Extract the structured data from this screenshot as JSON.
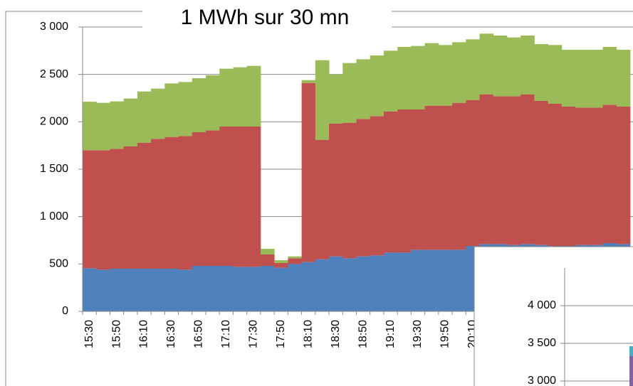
{
  "chart_data": [
    {
      "type": "stacked_bar",
      "title": "1 MWh sur 30 mn",
      "categories": [
        "15:30",
        null,
        "15:50",
        null,
        "16:10",
        null,
        "16:30",
        null,
        "16:50",
        null,
        "17:10",
        null,
        "17:30",
        null,
        "17:50",
        null,
        "18:10",
        null,
        "18:30",
        null,
        "18:50",
        null,
        "19:10",
        null,
        "19:30",
        null,
        "19:50",
        null,
        "20:10",
        null,
        null,
        null,
        null,
        null,
        null,
        null,
        null,
        null,
        null,
        null
      ],
      "series": [
        {
          "color": "#4f81bd",
          "values": [
            455,
            440,
            450,
            450,
            450,
            450,
            450,
            440,
            480,
            480,
            480,
            470,
            470,
            480,
            460,
            500,
            520,
            550,
            580,
            560,
            580,
            590,
            620,
            620,
            650,
            650,
            650,
            650,
            690,
            710,
            710,
            700,
            710,
            700,
            690,
            690,
            700,
            700,
            720,
            710
          ]
        },
        {
          "color": "#c0504d",
          "values": [
            1245,
            1260,
            1265,
            1290,
            1330,
            1370,
            1390,
            1410,
            1410,
            1430,
            1470,
            1480,
            1480,
            120,
            50,
            60,
            1890,
            1260,
            1400,
            1430,
            1450,
            1470,
            1490,
            1510,
            1480,
            1520,
            1520,
            1550,
            1540,
            1580,
            1560,
            1570,
            1580,
            1520,
            1500,
            1470,
            1450,
            1450,
            1460,
            1450
          ]
        },
        {
          "color": "#9bbb59",
          "values": [
            512,
            500,
            500,
            505,
            540,
            530,
            565,
            570,
            570,
            580,
            610,
            625,
            640,
            60,
            30,
            20,
            30,
            840,
            520,
            630,
            630,
            640,
            640,
            660,
            670,
            660,
            640,
            640,
            640,
            640,
            640,
            620,
            620,
            600,
            620,
            600,
            610,
            610,
            610,
            600
          ]
        }
      ],
      "ylim": [
        0,
        3000
      ],
      "yticks": [
        {
          "value": 0,
          "label": "0"
        },
        {
          "value": 500,
          "label": "500"
        },
        {
          "value": 1000,
          "label": "1 000"
        },
        {
          "value": 1500,
          "label": "1 500"
        },
        {
          "value": 2000,
          "label": "2 000"
        },
        {
          "value": 2500,
          "label": "2 500"
        },
        {
          "value": 3000,
          "label": "3 000"
        }
      ],
      "grid": true
    },
    {
      "type": "bar",
      "ylim": [
        2500,
        4500
      ],
      "yticks": [
        {
          "value": 3000,
          "label": "3 000"
        },
        {
          "value": 3500,
          "label": "3 500"
        },
        {
          "value": 4000,
          "label": "4 000"
        }
      ],
      "grid": true
    }
  ]
}
